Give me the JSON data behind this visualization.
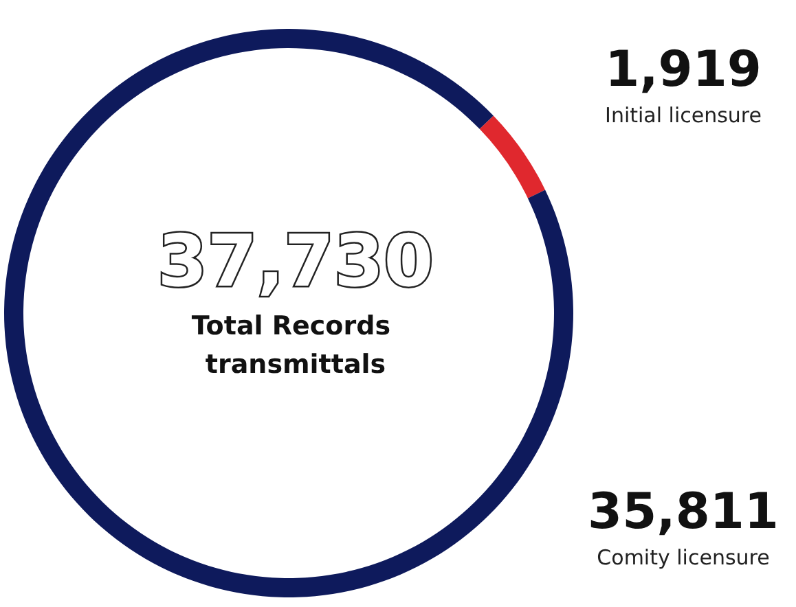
{
  "chart_data": {
    "type": "donut",
    "title": "37,730",
    "subtitle": "Total Records transmittals",
    "categories": [
      "Initial licensure",
      "Comity licensure"
    ],
    "values": [
      1919,
      35811
    ],
    "colors": [
      "#e0282e",
      "#0e1a5c"
    ],
    "value_labels": [
      "1,919",
      "35,811"
    ]
  }
}
